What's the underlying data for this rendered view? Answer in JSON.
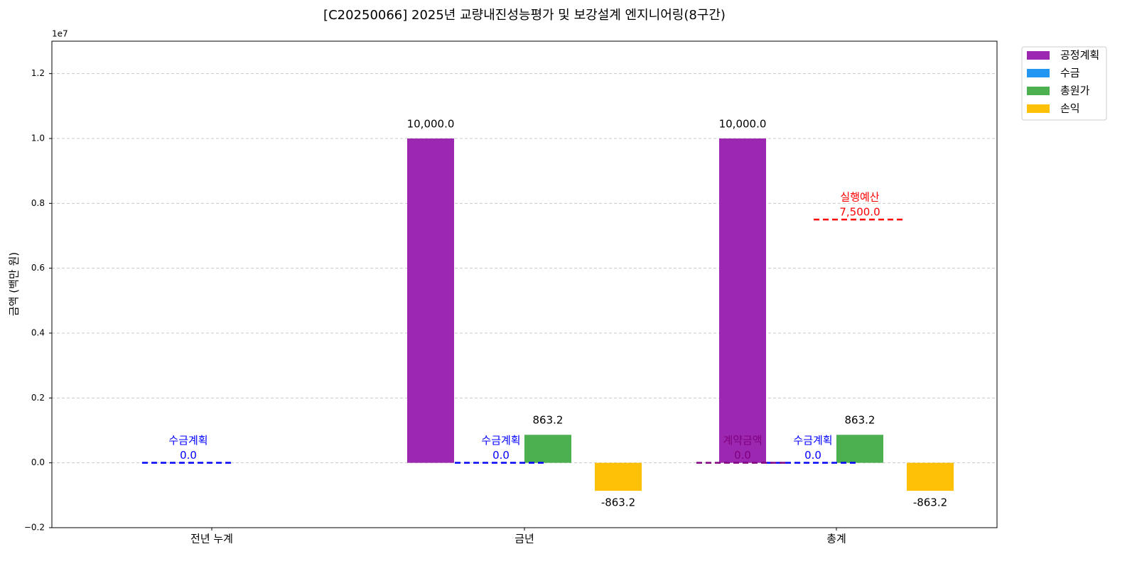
{
  "chart_data": {
    "type": "bar",
    "title": "[C20250066] 2025년 교량내진성능평가 및 보강설계 엔지니어링(8구간)",
    "y_label": "금액 (백만 원)",
    "y_offset_label": "1e7",
    "categories": [
      "전년 누계",
      "금년",
      "총계"
    ],
    "series": [
      {
        "name": "공정계획",
        "color": "#9c27b0",
        "values": [
          null,
          10000000,
          10000000
        ],
        "value_labels": [
          null,
          "10,000.0",
          "10,000.0"
        ]
      },
      {
        "name": "수금",
        "color": "#2196f3",
        "values": [
          null,
          0,
          0
        ],
        "value_labels": [
          null,
          null,
          null
        ]
      },
      {
        "name": "총원가",
        "color": "#4caf50",
        "values": [
          null,
          863200,
          863200
        ],
        "value_labels": [
          null,
          "863.2",
          "863.2"
        ]
      },
      {
        "name": "손익",
        "color": "#ffc107",
        "values": [
          null,
          -863200,
          -863200
        ],
        "value_labels": [
          null,
          "-863.2",
          "-863.2"
        ]
      }
    ],
    "reference_lines": [
      {
        "name": "수금계획",
        "color": "#0000ff",
        "values": [
          0,
          0,
          0
        ],
        "value_labels": [
          "0.0",
          "0.0",
          "0.0"
        ]
      },
      {
        "name": "계약금액",
        "color": "#800080",
        "values": [
          null,
          null,
          0
        ],
        "value_labels": [
          null,
          null,
          "0.0"
        ]
      },
      {
        "name": "실행예산",
        "color": "#ff0000",
        "values": [
          null,
          null,
          7500000
        ],
        "value_labels": [
          null,
          null,
          "7,500.0"
        ]
      }
    ],
    "ylim": [
      -2000000,
      13000000
    ],
    "yticks": [
      {
        "value": -2000000,
        "label": "−0.2"
      },
      {
        "value": 0,
        "label": "0.0"
      },
      {
        "value": 2000000,
        "label": "0.2"
      },
      {
        "value": 4000000,
        "label": "0.4"
      },
      {
        "value": 6000000,
        "label": "0.6"
      },
      {
        "value": 8000000,
        "label": "0.8"
      },
      {
        "value": 10000000,
        "label": "1.0"
      },
      {
        "value": 12000000,
        "label": "1.2"
      }
    ],
    "grid": true,
    "legend": "outside upper right"
  }
}
